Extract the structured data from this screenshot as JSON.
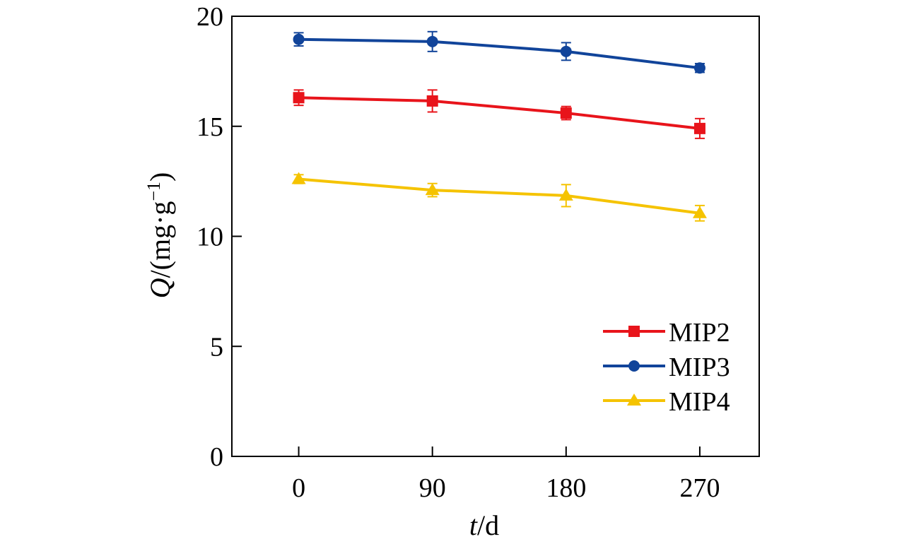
{
  "chart_data": {
    "type": "line",
    "xlabel_italic": "t",
    "xlabel_rest": "/d",
    "ylabel_italic": "Q",
    "ylabel_rest": "/(mg·g",
    "ylabel_sup": "−1",
    "ylabel_close": ")",
    "x": [
      0,
      90,
      180,
      270
    ],
    "xticks": [
      "0",
      "90",
      "180",
      "270"
    ],
    "xlim": [
      -45,
      310
    ],
    "yticks": [
      "0",
      "5",
      "10",
      "15",
      "20"
    ],
    "ylim": [
      0,
      20
    ],
    "legend_position": "bottom-right",
    "series": [
      {
        "name": "MIP2",
        "color": "#e8141b",
        "marker": "square",
        "values": [
          16.3,
          16.15,
          15.6,
          14.9
        ],
        "errors": [
          0.35,
          0.5,
          0.3,
          0.45
        ]
      },
      {
        "name": "MIP3",
        "color": "#11449a",
        "marker": "circle",
        "values": [
          18.95,
          18.85,
          18.4,
          17.65
        ],
        "errors": [
          0.3,
          0.45,
          0.4,
          0.2
        ]
      },
      {
        "name": "MIP4",
        "color": "#f5c300",
        "marker": "triangle",
        "values": [
          12.6,
          12.1,
          11.85,
          11.05
        ],
        "errors": [
          0.2,
          0.3,
          0.5,
          0.35
        ]
      }
    ]
  }
}
